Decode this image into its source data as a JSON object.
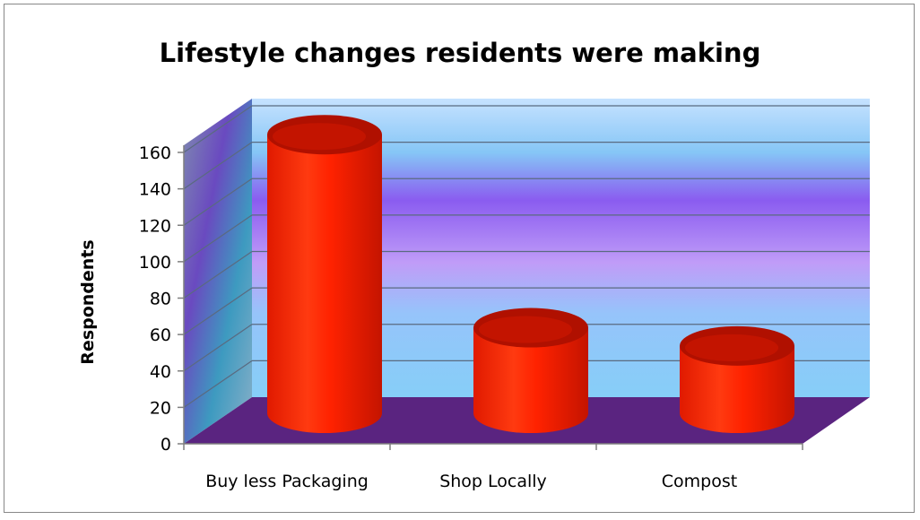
{
  "chart_data": {
    "type": "bar",
    "style": "3d-cylinder",
    "title": "Lifestyle changes residents were making",
    "xlabel": "",
    "ylabel": "Respondents",
    "categories": [
      "Buy less Packaging",
      "Shop Locally",
      "Compost"
    ],
    "series": [
      {
        "values": [
          153,
          47,
          37
        ]
      }
    ],
    "ylim": [
      0,
      160
    ],
    "yticks": [
      0,
      20,
      40,
      60,
      80,
      100,
      120,
      140,
      160
    ],
    "grid": true,
    "legend": "none",
    "colors": {
      "bar": "#ff2a00",
      "bar_dark": "#b01000",
      "floor": "#5a2480",
      "back_wall_top": "#b8d8ff",
      "back_wall_mid": "#9466ee",
      "back_wall_low": "#88c8ff",
      "gridline": "#5a6a80"
    }
  }
}
